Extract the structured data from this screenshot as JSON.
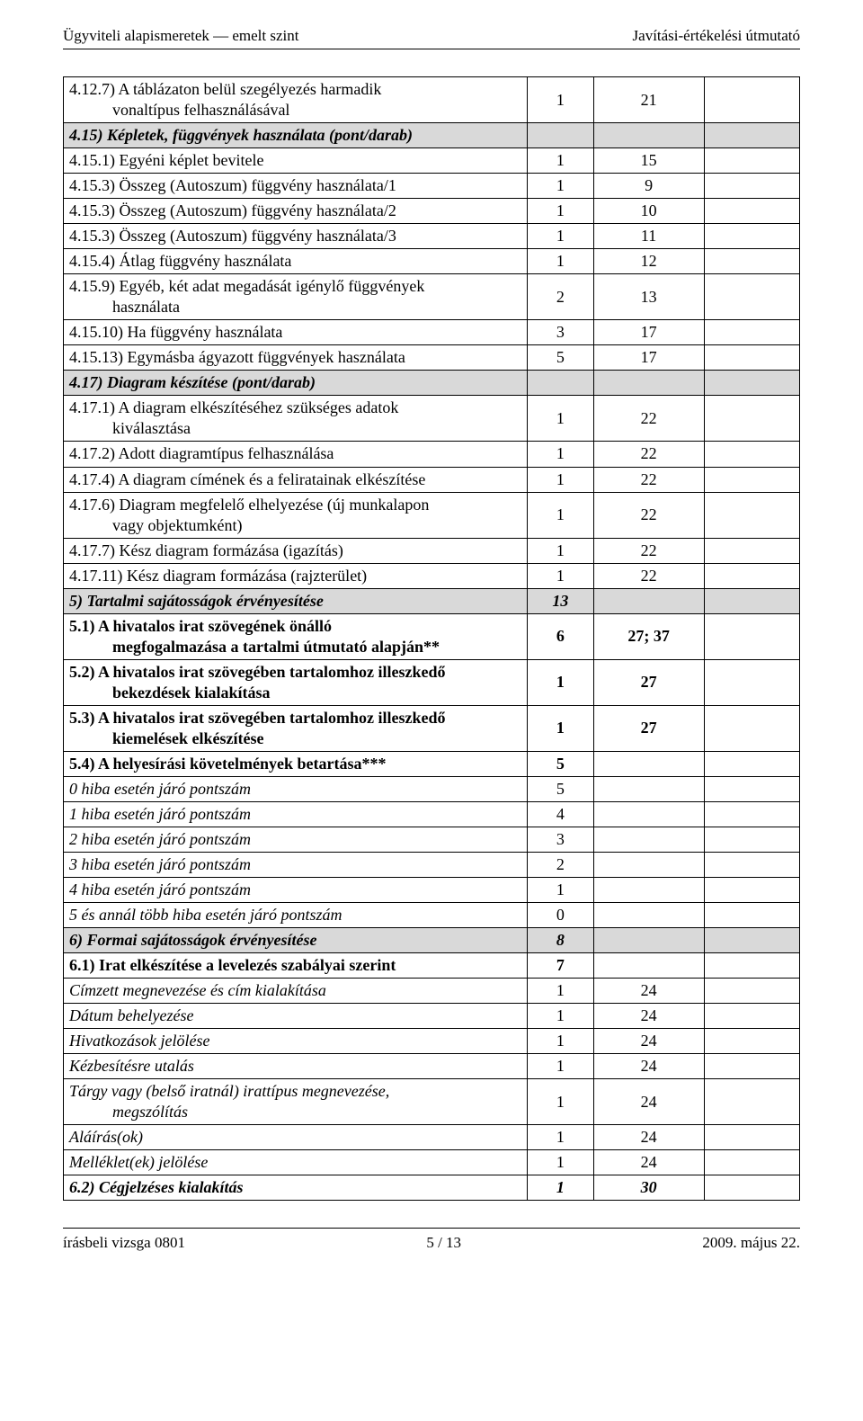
{
  "header": {
    "left": "Ügyviteli alapismeretek — emelt szint",
    "right": "Javítási-értékelési útmutató"
  },
  "footer": {
    "left": "írásbeli vizsga 0801",
    "center": "5 / 13",
    "right": "2009. május 22."
  },
  "colors": {
    "shade": "#d9d9d9",
    "border": "#000000",
    "text": "#000000",
    "bg": "#ffffff"
  },
  "rows": [
    {
      "desc": "4.12.7) A táblázaton belül szegélyezés harmadik",
      "desc2": "vonaltípus felhasználásával",
      "c1": "1",
      "c2": "21",
      "c3": ""
    },
    {
      "shade": true,
      "bolditalic": true,
      "desc": "4.15) Képletek, függvények használata (pont/darab)",
      "c1": "",
      "c2": "",
      "c3": ""
    },
    {
      "desc": "4.15.1) Egyéni képlet bevitele",
      "c1": "1",
      "c2": "15",
      "c3": ""
    },
    {
      "desc": "4.15.3) Összeg (Autoszum) függvény használata/1",
      "c1": "1",
      "c2": "9",
      "c3": ""
    },
    {
      "desc": "4.15.3) Összeg (Autoszum) függvény használata/2",
      "c1": "1",
      "c2": "10",
      "c3": ""
    },
    {
      "desc": "4.15.3) Összeg (Autoszum) függvény használata/3",
      "c1": "1",
      "c2": "11",
      "c3": ""
    },
    {
      "desc": "4.15.4) Átlag függvény használata",
      "c1": "1",
      "c2": "12",
      "c3": ""
    },
    {
      "desc": "4.15.9) Egyéb, két adat megadását igénylő függvények",
      "desc2": "használata",
      "c1": "2",
      "c2": "13",
      "c3": ""
    },
    {
      "desc": "4.15.10) Ha függvény használata",
      "c1": "3",
      "c2": "17",
      "c3": ""
    },
    {
      "desc": "4.15.13) Egymásba ágyazott függvények használata",
      "c1": "5",
      "c2": "17",
      "c3": ""
    },
    {
      "shade": true,
      "bolditalic": true,
      "desc": "4.17) Diagram készítése (pont/darab)",
      "c1": "",
      "c2": "",
      "c3": ""
    },
    {
      "desc": "4.17.1) A diagram elkészítéséhez szükséges adatok",
      "desc2": "kiválasztása",
      "c1": "1",
      "c2": "22",
      "c3": ""
    },
    {
      "desc": "4.17.2) Adott diagramtípus felhasználása",
      "c1": "1",
      "c2": "22",
      "c3": ""
    },
    {
      "desc": "4.17.4) A diagram címének és a feliratainak elkészítése",
      "c1": "1",
      "c2": "22",
      "c3": ""
    },
    {
      "desc": "4.17.6) Diagram megfelelő elhelyezése (új munkalapon",
      "desc2": "vagy objektumként)",
      "c1": "1",
      "c2": "22",
      "c3": ""
    },
    {
      "desc": "4.17.7) Kész diagram formázása (igazítás)",
      "c1": "1",
      "c2": "22",
      "c3": ""
    },
    {
      "desc": "4.17.11) Kész diagram formázása (rajzterület)",
      "c1": "1",
      "c2": "22",
      "c3": ""
    },
    {
      "shade": true,
      "bolditalic": true,
      "desc": "5) Tartalmi sajátosságok érvényesítése",
      "c1": "13",
      "c2": "",
      "c3": ""
    },
    {
      "bold": true,
      "desc": "5.1) A hivatalos irat szövegének önálló",
      "desc2": "megfogalmazása a tartalmi útmutató alapján**",
      "c1": "6",
      "c2": "27; 37",
      "c3": ""
    },
    {
      "bold": true,
      "desc": "5.2) A hivatalos irat szövegében tartalomhoz illeszkedő",
      "desc2": "bekezdések kialakítása",
      "c1": "1",
      "c2": "27",
      "c3": ""
    },
    {
      "bold": true,
      "desc": "5.3) A hivatalos irat szövegében tartalomhoz illeszkedő",
      "desc2": "kiemelések elkészítése",
      "c1": "1",
      "c2": "27",
      "c3": ""
    },
    {
      "bold": true,
      "desc": "5.4) A helyesírási követelmények betartása***",
      "c1": "5",
      "c2": "",
      "c3": ""
    },
    {
      "italic": true,
      "desc": "0 hiba esetén járó pontszám",
      "c1": "5",
      "c2": "",
      "c3": ""
    },
    {
      "italic": true,
      "desc": "1 hiba esetén járó pontszám",
      "c1": "4",
      "c2": "",
      "c3": ""
    },
    {
      "italic": true,
      "desc": "2 hiba esetén járó pontszám",
      "c1": "3",
      "c2": "",
      "c3": ""
    },
    {
      "italic": true,
      "desc": "3 hiba esetén járó pontszám",
      "c1": "2",
      "c2": "",
      "c3": ""
    },
    {
      "italic": true,
      "desc": "4 hiba esetén járó pontszám",
      "c1": "1",
      "c2": "",
      "c3": ""
    },
    {
      "italic": true,
      "desc": "5 és annál több hiba esetén járó pontszám",
      "c1": "0",
      "c2": "",
      "c3": ""
    },
    {
      "shade": true,
      "bolditalic": true,
      "desc": "6) Formai sajátosságok érvényesítése",
      "c1": "8",
      "c2": "",
      "c3": ""
    },
    {
      "bold": true,
      "desc": "6.1) Irat elkészítése a levelezés szabályai szerint",
      "c1": "7",
      "c2": "",
      "c3": ""
    },
    {
      "italic": true,
      "desc": "Címzett megnevezése és cím kialakítása",
      "c1": "1",
      "c2": "24",
      "c3": ""
    },
    {
      "italic": true,
      "desc": "Dátum behelyezése",
      "c1": "1",
      "c2": "24",
      "c3": ""
    },
    {
      "italic": true,
      "desc": "Hivatkozások jelölése",
      "c1": "1",
      "c2": "24",
      "c3": ""
    },
    {
      "italic": true,
      "desc": "Kézbesítésre utalás",
      "c1": "1",
      "c2": "24",
      "c3": ""
    },
    {
      "italic": true,
      "desc": "Tárgy vagy (belső iratnál) irattípus megnevezése,",
      "desc2": "megszólítás",
      "c1": "1",
      "c2": "24",
      "c3": ""
    },
    {
      "italic": true,
      "desc": "Aláírás(ok)",
      "c1": "1",
      "c2": "24",
      "c3": ""
    },
    {
      "italic": true,
      "desc": "Melléklet(ek) jelölése",
      "c1": "1",
      "c2": "24",
      "c3": ""
    },
    {
      "bolditalic": true,
      "desc": "6.2) Cégjelzéses kialakítás",
      "c1": "1",
      "c2": "30",
      "c3": ""
    }
  ]
}
